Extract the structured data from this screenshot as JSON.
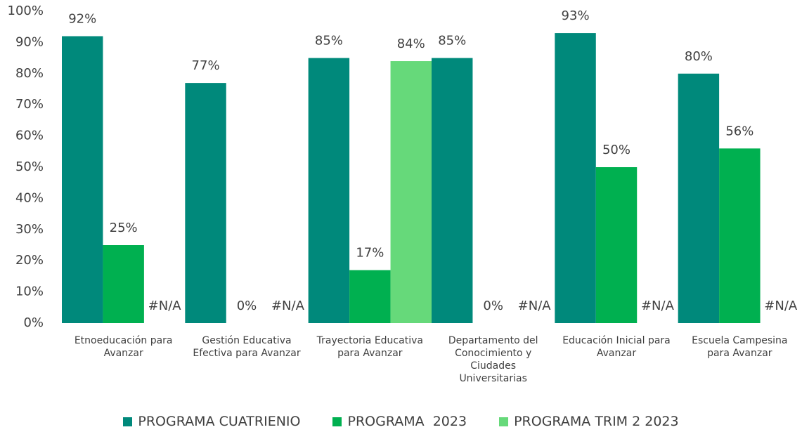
{
  "chart_data": {
    "type": "bar",
    "categories": [
      "Etnoeducación para Avanzar",
      "Gestión Educativa Efectiva para Avanzar",
      "Trayectoria Educativa para Avanzar",
      "Departamento del Conocimiento y Ciudades Universitarias",
      "Educación Inicial para Avanzar",
      "Escuela Campesina para Avanzar"
    ],
    "series": [
      {
        "name": "PROGRAMA CUATRIENIO",
        "color": "#00897b",
        "values": [
          92,
          77,
          85,
          85,
          93,
          80
        ],
        "value_labels": [
          "92%",
          "77%",
          "85%",
          "85%",
          "93%",
          "80%"
        ]
      },
      {
        "name": "PROGRAMA  2023",
        "color": "#00b050",
        "values": [
          25,
          0,
          17,
          0,
          50,
          56
        ],
        "value_labels": [
          "25%",
          "0%",
          "17%",
          "0%",
          "50%",
          "56%"
        ]
      },
      {
        "name": "PROGRAMA TRIM 2 2023",
        "color": "#66d97a",
        "values": [
          null,
          null,
          84,
          null,
          null,
          null
        ],
        "value_labels": [
          "#N/A",
          "#N/A",
          "84%",
          "#N/A",
          "#N/A",
          "#N/A"
        ]
      }
    ],
    "ylim": [
      0,
      100
    ],
    "yticks": [
      {
        "value": 0,
        "label": "0%"
      },
      {
        "value": 10,
        "label": "10%"
      },
      {
        "value": 20,
        "label": "20%"
      },
      {
        "value": 30,
        "label": "30%"
      },
      {
        "value": 40,
        "label": "40%"
      },
      {
        "value": 50,
        "label": "50%"
      },
      {
        "value": 60,
        "label": "60%"
      },
      {
        "value": 70,
        "label": "70%"
      },
      {
        "value": 80,
        "label": "80%"
      },
      {
        "value": 90,
        "label": "90%"
      },
      {
        "value": 100,
        "label": "100%"
      }
    ],
    "legend": "bottom"
  }
}
